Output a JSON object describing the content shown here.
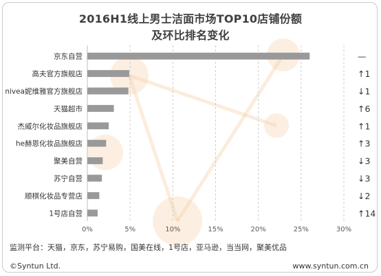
{
  "chart_data": {
    "type": "bar",
    "orientation": "horizontal",
    "title_line1": "2016H1线上男士洁面市场TOP10店铺份额",
    "title_line2": "及环比排名变化",
    "categories": [
      "京东自营",
      "高夫官方旗舰店",
      "nivea妮维雅官方旗舰店",
      "天猫超市",
      "杰威尔化妆品旗舰店",
      "he赫恩化妆品旗舰店",
      "聚美自营",
      "苏宁自营",
      "顺棋化妆品专营店",
      "1号店自营"
    ],
    "values": [
      26,
      4.9,
      4.8,
      3.1,
      2.5,
      2.2,
      1.8,
      1.7,
      1.4,
      1.2
    ],
    "rank_changes": [
      "—",
      "↑1",
      "↓1",
      "↑6",
      "↑1",
      "↑3",
      "↓3",
      "↓3",
      "↓2",
      "↑14"
    ],
    "xlim": [
      0,
      30
    ],
    "xticks": [
      0,
      5,
      10,
      15,
      20,
      25,
      30
    ],
    "xtick_labels": [
      "0%",
      "5%",
      "10%",
      "15%",
      "20%",
      "25%",
      "30%"
    ],
    "bar_color": "#999999",
    "grid": "vertical dashed",
    "watermark_color": "#f5c9a0"
  },
  "footer": {
    "platforms": "监测平台：天猫，京东，苏宁易购，国美在线，1号店，亚马逊，当当网，聚美优品",
    "copyright": "©Syntun Ltd.",
    "website": "www.syntun.com.cn"
  }
}
